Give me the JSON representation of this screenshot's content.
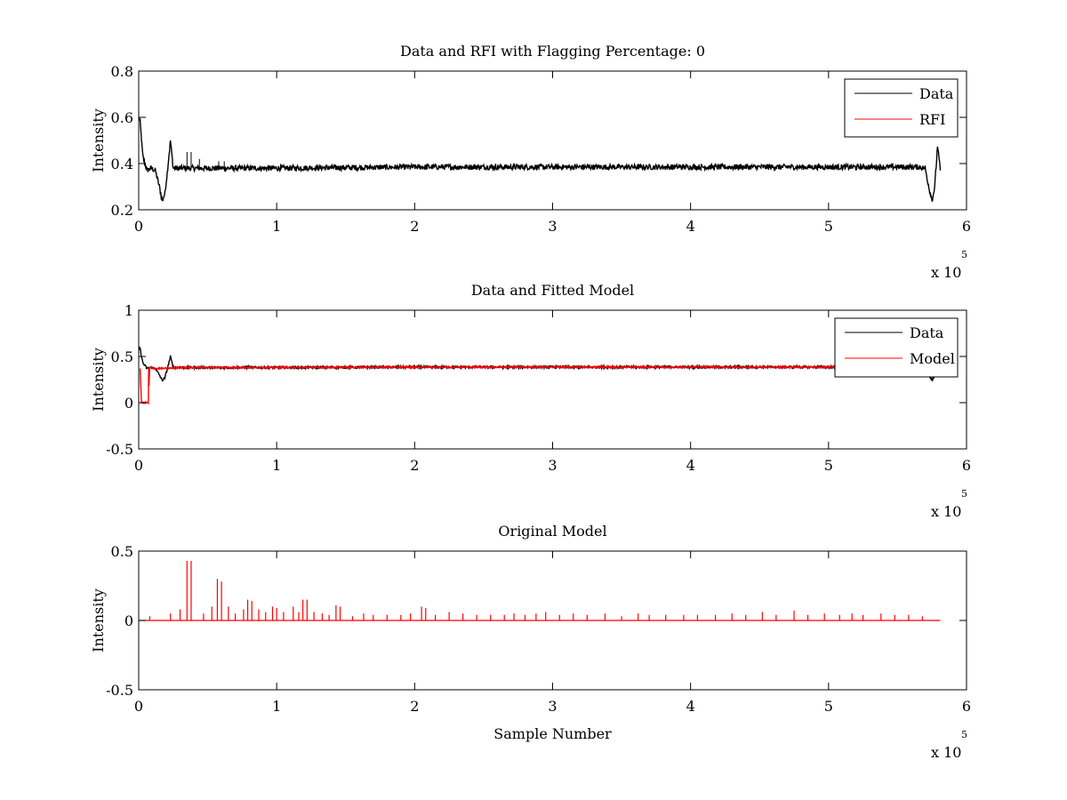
{
  "figure": {
    "background": "#ffffff",
    "data_color": "#000000",
    "rfi_color": "#ff0000"
  },
  "chart_data": [
    {
      "type": "line",
      "title": "Data and RFI with Flagging Percentage: 0",
      "xlabel": "",
      "ylabel": "Intensity",
      "xlim": [
        0,
        6
      ],
      "ylim": [
        0.2,
        0.8
      ],
      "x_multiplier": {
        "base": "x 10",
        "exponent": "5"
      },
      "xticks": [
        "0",
        "1",
        "2",
        "3",
        "4",
        "5",
        "6"
      ],
      "yticks": [
        "0.2",
        "0.4",
        "0.6",
        "0.8"
      ],
      "legend": {
        "position": "top-right",
        "entries": [
          {
            "name": "Data",
            "color": "#000000"
          },
          {
            "name": "RFI",
            "color": "#ff0000"
          }
        ]
      },
      "series": [
        {
          "name": "Data",
          "color": "#000000",
          "x": [
            0,
            0.01,
            0.03,
            0.06,
            0.09,
            0.12,
            0.15,
            0.17,
            0.19,
            0.21,
            0.23,
            0.25,
            0.3,
            0.5,
            1.0,
            2.0,
            3.0,
            4.0,
            5.0,
            5.5,
            5.65,
            5.7,
            5.73,
            5.75,
            5.77,
            5.79,
            5.81
          ],
          "y": [
            0.6,
            0.58,
            0.43,
            0.37,
            0.38,
            0.37,
            0.3,
            0.24,
            0.27,
            0.38,
            0.5,
            0.38,
            0.38,
            0.38,
            0.38,
            0.385,
            0.385,
            0.385,
            0.385,
            0.385,
            0.385,
            0.38,
            0.29,
            0.24,
            0.3,
            0.48,
            0.37
          ],
          "noise": 0.012
        }
      ],
      "spikes": [
        {
          "x": 0.35,
          "y": 0.45
        },
        {
          "x": 0.38,
          "y": 0.45
        },
        {
          "x": 0.44,
          "y": 0.42
        },
        {
          "x": 0.58,
          "y": 0.41
        },
        {
          "x": 0.62,
          "y": 0.41
        }
      ]
    },
    {
      "type": "line",
      "title": "Data and Fitted Model",
      "xlabel": "",
      "ylabel": "Intensity",
      "xlim": [
        0,
        6
      ],
      "ylim": [
        -0.5,
        1
      ],
      "x_multiplier": {
        "base": "x 10",
        "exponent": "5"
      },
      "xticks": [
        "0",
        "1",
        "2",
        "3",
        "4",
        "5",
        "6"
      ],
      "yticks": [
        "-0.5",
        "0",
        "0.5",
        "1"
      ],
      "legend": {
        "position": "top-right",
        "entries": [
          {
            "name": "Data",
            "color": "#000000"
          },
          {
            "name": "Model",
            "color": "#ff0000"
          }
        ]
      },
      "series": [
        {
          "name": "Data",
          "color": "#000000",
          "x": [
            0,
            0.01,
            0.03,
            0.06,
            0.09,
            0.12,
            0.15,
            0.17,
            0.19,
            0.21,
            0.23,
            0.25,
            0.3,
            0.5,
            1.0,
            2.0,
            3.0,
            4.0,
            5.0,
            5.5,
            5.65,
            5.7,
            5.73,
            5.75,
            5.77,
            5.79,
            5.81
          ],
          "y": [
            0.6,
            0.58,
            0.43,
            0.37,
            0.38,
            0.37,
            0.3,
            0.24,
            0.27,
            0.38,
            0.5,
            0.38,
            0.38,
            0.38,
            0.38,
            0.385,
            0.385,
            0.385,
            0.385,
            0.385,
            0.385,
            0.38,
            0.29,
            0.24,
            0.3,
            0.48,
            0.37
          ],
          "noise": 0.012
        },
        {
          "name": "Model",
          "color": "#ff0000",
          "x": [
            0.01,
            0.02,
            0.07,
            0.072,
            0.075,
            0.08,
            0.1,
            0.2,
            0.3,
            1.0,
            2.0,
            3.0,
            4.0,
            5.0,
            5.81
          ],
          "y": [
            0.37,
            0.0,
            0.0,
            0.37,
            0.18,
            0.38,
            0.37,
            0.37,
            0.38,
            0.38,
            0.385,
            0.385,
            0.385,
            0.385,
            0.38
          ],
          "noise": 0.008
        }
      ]
    },
    {
      "type": "line",
      "title": "Original Model",
      "xlabel": "Sample Number",
      "ylabel": "Intensity",
      "xlim": [
        0,
        6
      ],
      "ylim": [
        -0.5,
        0.5
      ],
      "x_multiplier": {
        "base": "x 10",
        "exponent": "5"
      },
      "xticks": [
        "0",
        "1",
        "2",
        "3",
        "4",
        "5",
        "6"
      ],
      "yticks": [
        "-0.5",
        "0",
        "0.5"
      ],
      "series": [
        {
          "name": "",
          "color": "#ff0000",
          "x": [
            0,
            5.81
          ],
          "y": [
            0,
            0
          ],
          "spikes": [
            {
              "x": 0.08,
              "y": 0.03
            },
            {
              "x": 0.23,
              "y": 0.05
            },
            {
              "x": 0.3,
              "y": 0.08
            },
            {
              "x": 0.35,
              "y": 0.43
            },
            {
              "x": 0.38,
              "y": 0.43
            },
            {
              "x": 0.47,
              "y": 0.05
            },
            {
              "x": 0.53,
              "y": 0.1
            },
            {
              "x": 0.57,
              "y": 0.3
            },
            {
              "x": 0.6,
              "y": 0.28
            },
            {
              "x": 0.65,
              "y": 0.1
            },
            {
              "x": 0.7,
              "y": 0.05
            },
            {
              "x": 0.76,
              "y": 0.08
            },
            {
              "x": 0.79,
              "y": 0.15
            },
            {
              "x": 0.82,
              "y": 0.14
            },
            {
              "x": 0.87,
              "y": 0.08
            },
            {
              "x": 0.92,
              "y": 0.06
            },
            {
              "x": 0.97,
              "y": 0.1
            },
            {
              "x": 1.0,
              "y": 0.09
            },
            {
              "x": 1.05,
              "y": 0.06
            },
            {
              "x": 1.12,
              "y": 0.1
            },
            {
              "x": 1.16,
              "y": 0.06
            },
            {
              "x": 1.19,
              "y": 0.15
            },
            {
              "x": 1.22,
              "y": 0.15
            },
            {
              "x": 1.27,
              "y": 0.06
            },
            {
              "x": 1.33,
              "y": 0.05
            },
            {
              "x": 1.38,
              "y": 0.04
            },
            {
              "x": 1.43,
              "y": 0.11
            },
            {
              "x": 1.46,
              "y": 0.1
            },
            {
              "x": 1.55,
              "y": 0.03
            },
            {
              "x": 1.63,
              "y": 0.05
            },
            {
              "x": 1.7,
              "y": 0.04
            },
            {
              "x": 1.8,
              "y": 0.04
            },
            {
              "x": 1.9,
              "y": 0.04
            },
            {
              "x": 1.97,
              "y": 0.05
            },
            {
              "x": 2.05,
              "y": 0.1
            },
            {
              "x": 2.08,
              "y": 0.09
            },
            {
              "x": 2.15,
              "y": 0.04
            },
            {
              "x": 2.25,
              "y": 0.06
            },
            {
              "x": 2.35,
              "y": 0.05
            },
            {
              "x": 2.45,
              "y": 0.04
            },
            {
              "x": 2.55,
              "y": 0.04
            },
            {
              "x": 2.65,
              "y": 0.04
            },
            {
              "x": 2.72,
              "y": 0.05
            },
            {
              "x": 2.8,
              "y": 0.04
            },
            {
              "x": 2.88,
              "y": 0.05
            },
            {
              "x": 2.95,
              "y": 0.06
            },
            {
              "x": 3.05,
              "y": 0.04
            },
            {
              "x": 3.15,
              "y": 0.05
            },
            {
              "x": 3.25,
              "y": 0.04
            },
            {
              "x": 3.38,
              "y": 0.05
            },
            {
              "x": 3.5,
              "y": 0.03
            },
            {
              "x": 3.62,
              "y": 0.05
            },
            {
              "x": 3.7,
              "y": 0.04
            },
            {
              "x": 3.82,
              "y": 0.04
            },
            {
              "x": 3.95,
              "y": 0.04
            },
            {
              "x": 4.05,
              "y": 0.04
            },
            {
              "x": 4.18,
              "y": 0.04
            },
            {
              "x": 4.3,
              "y": 0.05
            },
            {
              "x": 4.4,
              "y": 0.04
            },
            {
              "x": 4.52,
              "y": 0.06
            },
            {
              "x": 4.62,
              "y": 0.04
            },
            {
              "x": 4.75,
              "y": 0.07
            },
            {
              "x": 4.85,
              "y": 0.04
            },
            {
              "x": 4.97,
              "y": 0.05
            },
            {
              "x": 5.08,
              "y": 0.04
            },
            {
              "x": 5.17,
              "y": 0.05
            },
            {
              "x": 5.25,
              "y": 0.04
            },
            {
              "x": 5.38,
              "y": 0.05
            },
            {
              "x": 5.48,
              "y": 0.04
            },
            {
              "x": 5.58,
              "y": 0.04
            },
            {
              "x": 5.68,
              "y": 0.03
            }
          ]
        }
      ]
    }
  ]
}
